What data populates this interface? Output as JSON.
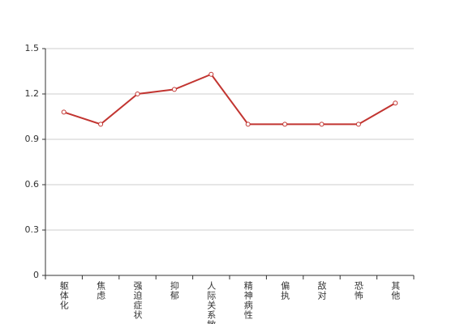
{
  "chart_data": {
    "type": "line",
    "categories": [
      "躯体化",
      "焦虑",
      "强迫症状",
      "抑郁",
      "人际关系敏感",
      "精神病性",
      "偏执",
      "敌对",
      "恐怖",
      "其他"
    ],
    "values": [
      1.08,
      1.0,
      1.2,
      1.23,
      1.33,
      1.0,
      1.0,
      1.0,
      1.0,
      1.14
    ],
    "color": "#c23531",
    "ylim": [
      0,
      1.5
    ],
    "yticks": [
      0,
      0.3,
      0.6,
      0.9,
      1.2,
      1.5
    ],
    "grid": true
  }
}
